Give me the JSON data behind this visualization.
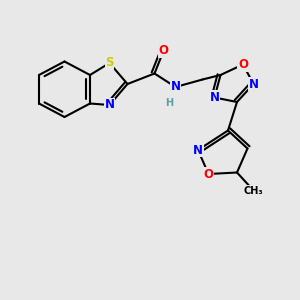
{
  "bg_color": "#e8e8e8",
  "bond_color": "#000000",
  "bond_lw": 1.5,
  "atom_colors": {
    "S": "#cccc00",
    "N": "#0000ff",
    "O": "#ff0000",
    "C": "#000000",
    "H": "#5f9ea0"
  },
  "font_size": 7.5,
  "figsize": [
    3.0,
    3.0
  ],
  "dpi": 100
}
